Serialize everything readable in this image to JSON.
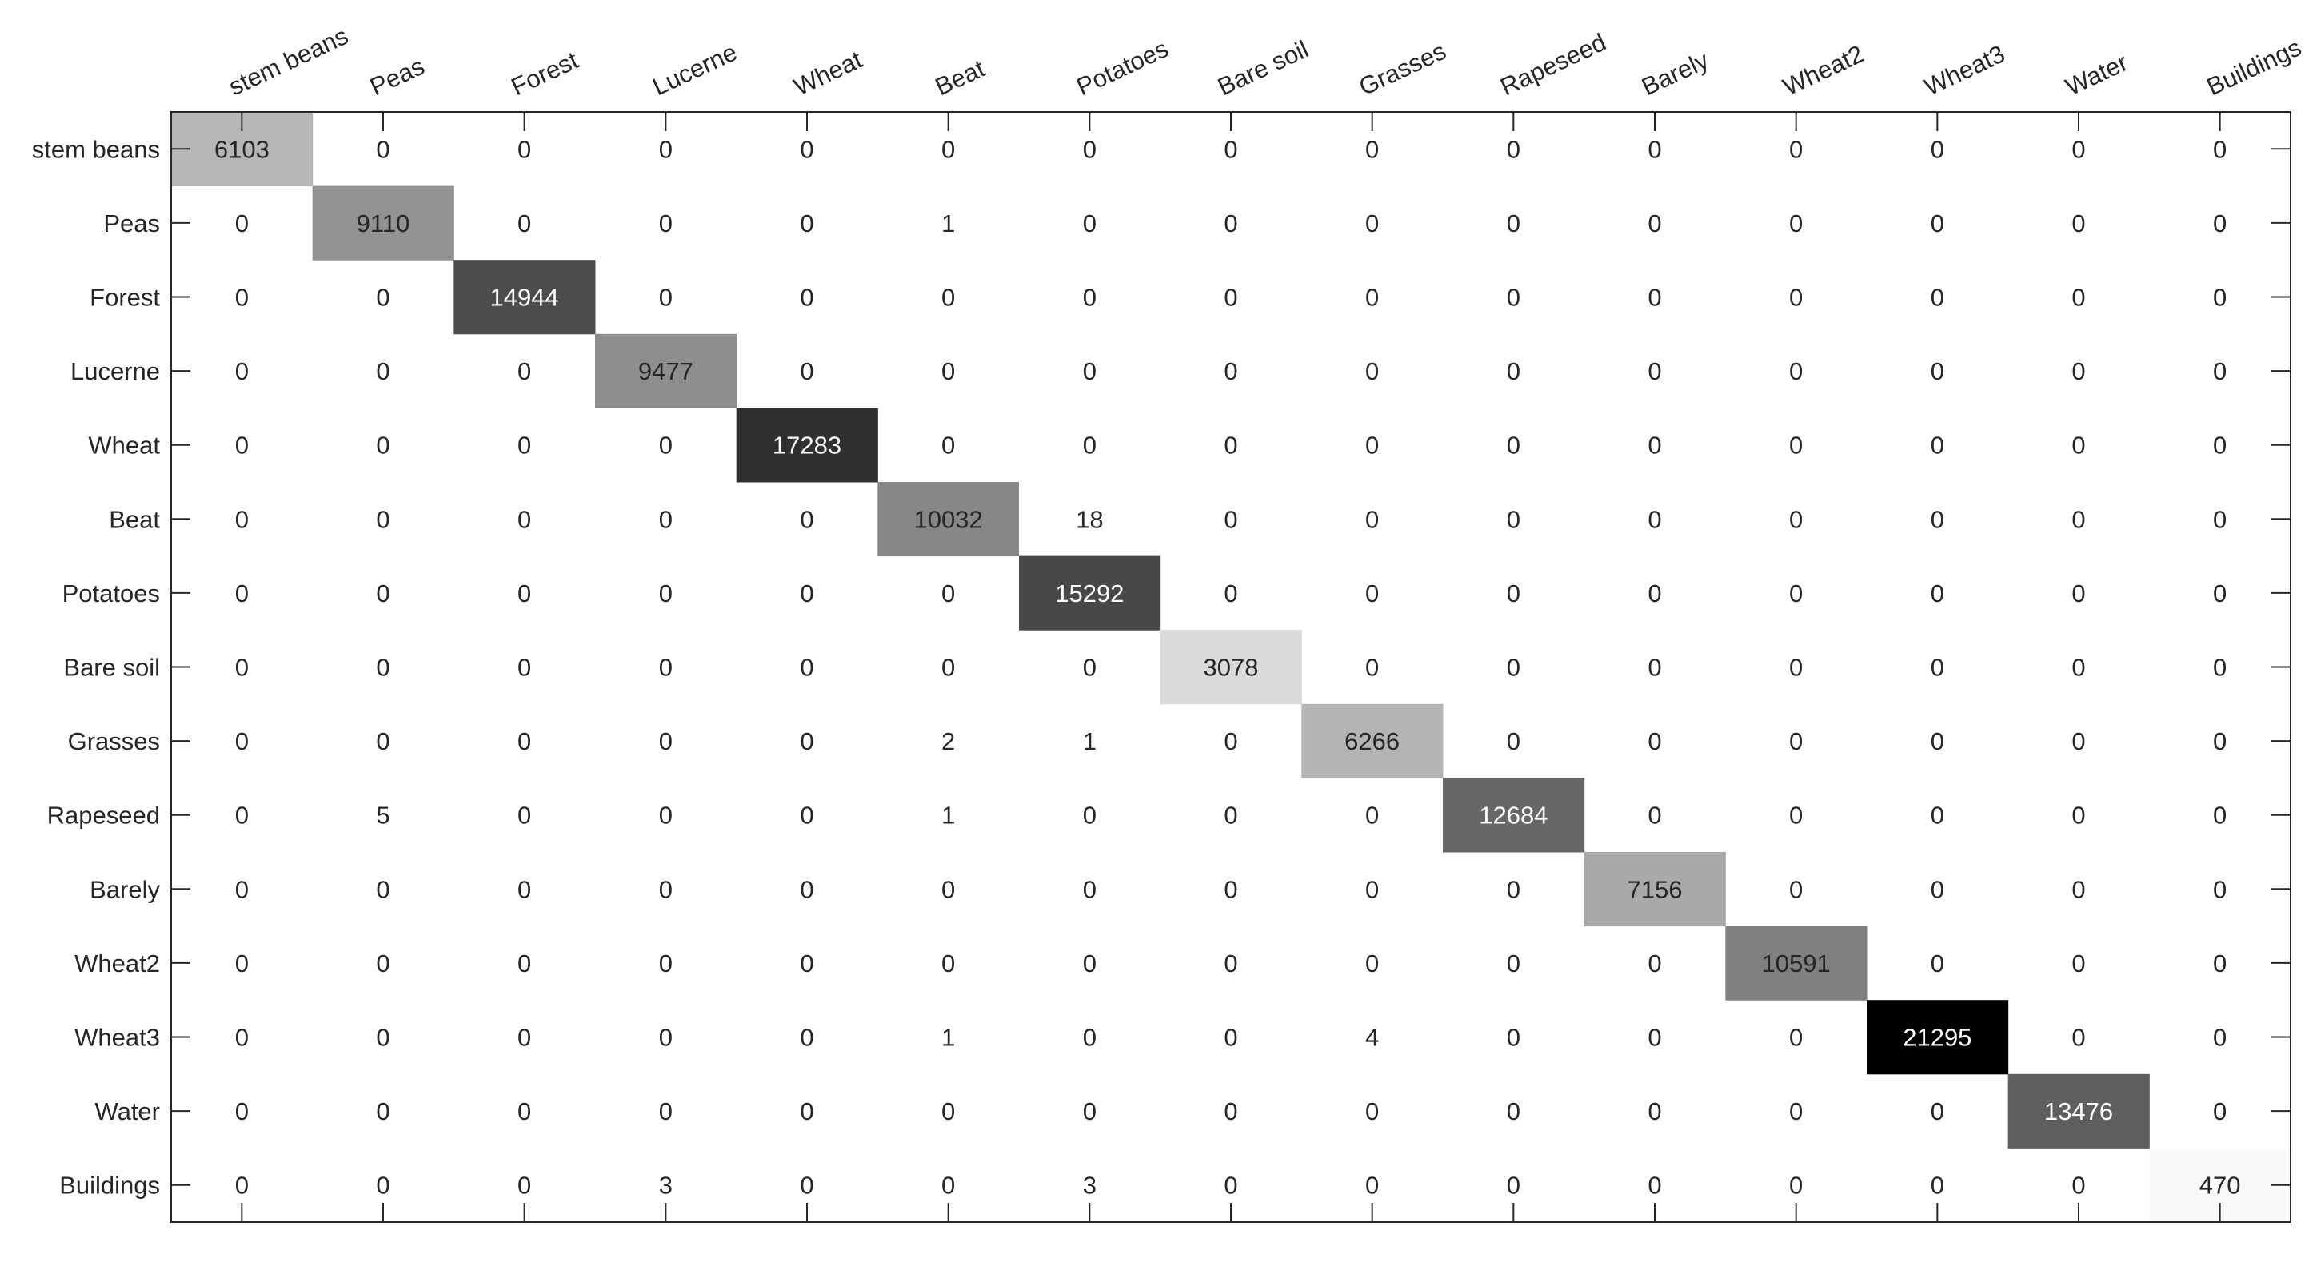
{
  "chart_data": {
    "type": "heatmap",
    "title": "",
    "xlabel": "",
    "ylabel": "",
    "colormap": "grayscale (white = low, black = high)",
    "grid": false,
    "x_tick_labels_position": "top",
    "x_categories": [
      "stem beans",
      "Peas",
      "Forest",
      "Lucerne",
      "Wheat",
      "Beat",
      "Potatoes",
      "Bare soil",
      "Grasses",
      "Rapeseed",
      "Barely",
      "Wheat2",
      "Wheat3",
      "Water",
      "Buildings"
    ],
    "y_categories": [
      "stem beans",
      "Peas",
      "Forest",
      "Lucerne",
      "Wheat",
      "Beat",
      "Potatoes",
      "Bare soil",
      "Grasses",
      "Rapeseed",
      "Barely",
      "Wheat2",
      "Wheat3",
      "Water",
      "Buildings"
    ],
    "values": [
      [
        6103,
        0,
        0,
        0,
        0,
        0,
        0,
        0,
        0,
        0,
        0,
        0,
        0,
        0,
        0
      ],
      [
        0,
        9110,
        0,
        0,
        0,
        1,
        0,
        0,
        0,
        0,
        0,
        0,
        0,
        0,
        0
      ],
      [
        0,
        0,
        14944,
        0,
        0,
        0,
        0,
        0,
        0,
        0,
        0,
        0,
        0,
        0,
        0
      ],
      [
        0,
        0,
        0,
        9477,
        0,
        0,
        0,
        0,
        0,
        0,
        0,
        0,
        0,
        0,
        0
      ],
      [
        0,
        0,
        0,
        0,
        17283,
        0,
        0,
        0,
        0,
        0,
        0,
        0,
        0,
        0,
        0
      ],
      [
        0,
        0,
        0,
        0,
        0,
        10032,
        18,
        0,
        0,
        0,
        0,
        0,
        0,
        0,
        0
      ],
      [
        0,
        0,
        0,
        0,
        0,
        0,
        15292,
        0,
        0,
        0,
        0,
        0,
        0,
        0,
        0
      ],
      [
        0,
        0,
        0,
        0,
        0,
        0,
        0,
        3078,
        0,
        0,
        0,
        0,
        0,
        0,
        0
      ],
      [
        0,
        0,
        0,
        0,
        0,
        2,
        1,
        0,
        6266,
        0,
        0,
        0,
        0,
        0,
        0
      ],
      [
        0,
        5,
        0,
        0,
        0,
        1,
        0,
        0,
        0,
        12684,
        0,
        0,
        0,
        0,
        0
      ],
      [
        0,
        0,
        0,
        0,
        0,
        0,
        0,
        0,
        0,
        0,
        7156,
        0,
        0,
        0,
        0
      ],
      [
        0,
        0,
        0,
        0,
        0,
        0,
        0,
        0,
        0,
        0,
        0,
        10591,
        0,
        0,
        0
      ],
      [
        0,
        0,
        0,
        0,
        0,
        1,
        0,
        0,
        4,
        0,
        0,
        0,
        21295,
        0,
        0
      ],
      [
        0,
        0,
        0,
        0,
        0,
        0,
        0,
        0,
        0,
        0,
        0,
        0,
        0,
        13476,
        0
      ],
      [
        0,
        0,
        0,
        3,
        0,
        0,
        3,
        0,
        0,
        0,
        0,
        0,
        0,
        0,
        470
      ]
    ],
    "value_range": [
      0,
      21295
    ]
  }
}
